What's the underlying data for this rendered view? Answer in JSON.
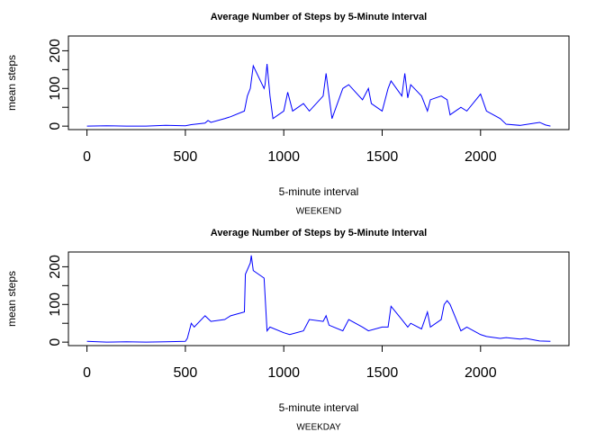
{
  "chart_data": [
    {
      "type": "line",
      "title": "Average Number of Steps by 5-Minute Interval",
      "xlabel": "5-minute interval",
      "ylabel": "mean steps",
      "subtitle": "WEEKEND",
      "color": "#0000ff",
      "x": [
        0,
        100,
        200,
        300,
        400,
        500,
        530,
        600,
        615,
        630,
        700,
        730,
        800,
        815,
        830,
        845,
        900,
        905,
        915,
        930,
        945,
        1000,
        1020,
        1045,
        1100,
        1130,
        1200,
        1215,
        1230,
        1245,
        1300,
        1330,
        1400,
        1430,
        1445,
        1500,
        1530,
        1545,
        1600,
        1615,
        1630,
        1645,
        1700,
        1730,
        1745,
        1800,
        1830,
        1845,
        1900,
        1930,
        2000,
        2030,
        2100,
        2130,
        2200,
        2300,
        2330,
        2355
      ],
      "values": [
        0,
        1,
        0,
        0,
        2,
        1,
        4,
        8,
        15,
        10,
        20,
        25,
        40,
        80,
        100,
        160,
        100,
        110,
        165,
        80,
        20,
        40,
        90,
        40,
        60,
        40,
        80,
        140,
        80,
        20,
        100,
        110,
        70,
        100,
        60,
        40,
        100,
        120,
        80,
        140,
        75,
        110,
        80,
        40,
        70,
        80,
        70,
        30,
        50,
        40,
        85,
        40,
        20,
        5,
        2,
        10,
        3,
        0
      ],
      "xlim": [
        -94.2,
        2449.2
      ],
      "ylim": [
        -9.2,
        239.2
      ],
      "xticks": [
        0,
        500,
        1000,
        1500,
        2000
      ],
      "yticks": [
        0,
        100,
        200
      ],
      "yminor": [
        50,
        150
      ]
    },
    {
      "type": "line",
      "title": "Average Number of Steps by 5-Minute Interval",
      "xlabel": "5-minute interval",
      "ylabel": "mean steps",
      "subtitle": "WEEKDAY",
      "color": "#0000ff",
      "x": [
        0,
        100,
        200,
        300,
        400,
        500,
        510,
        530,
        545,
        600,
        630,
        700,
        730,
        800,
        805,
        830,
        835,
        845,
        900,
        915,
        930,
        1000,
        1030,
        1100,
        1130,
        1200,
        1215,
        1230,
        1300,
        1330,
        1400,
        1430,
        1500,
        1530,
        1545,
        1600,
        1630,
        1645,
        1700,
        1730,
        1745,
        1800,
        1815,
        1830,
        1845,
        1900,
        1930,
        2000,
        2030,
        2100,
        2130,
        2200,
        2230,
        2300,
        2355
      ],
      "values": [
        2,
        0,
        1,
        0,
        1,
        2,
        10,
        50,
        40,
        70,
        55,
        60,
        70,
        80,
        180,
        210,
        230,
        190,
        170,
        30,
        40,
        25,
        20,
        30,
        60,
        55,
        70,
        45,
        30,
        60,
        40,
        30,
        40,
        40,
        95,
        60,
        40,
        50,
        35,
        80,
        40,
        60,
        100,
        110,
        100,
        30,
        40,
        20,
        15,
        10,
        12,
        8,
        10,
        3,
        2
      ],
      "xlim": [
        -94.2,
        2449.2
      ],
      "ylim": [
        -9.2,
        239.2
      ],
      "xticks": [
        0,
        500,
        1000,
        1500,
        2000
      ],
      "yticks": [
        0,
        100,
        200
      ],
      "yminor": [
        50,
        150
      ]
    }
  ]
}
